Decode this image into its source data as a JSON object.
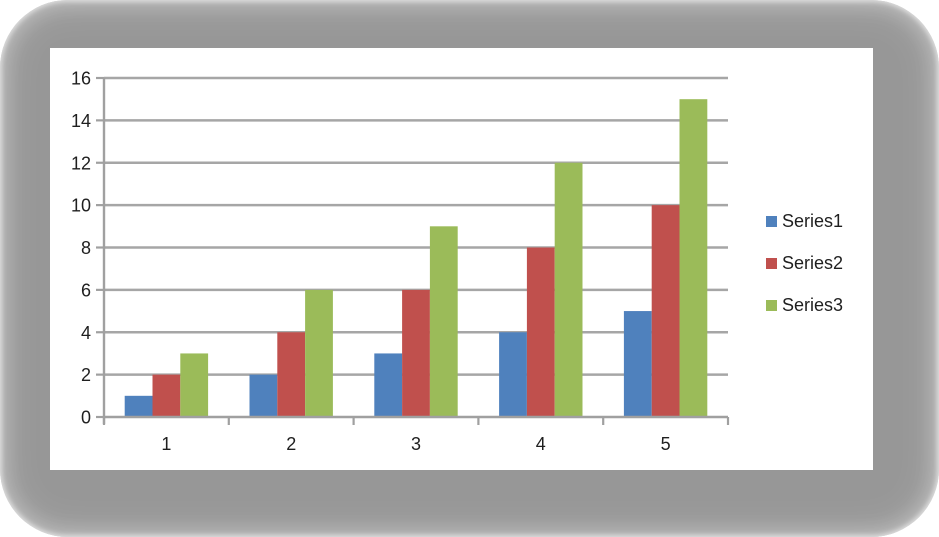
{
  "chart_data": {
    "type": "bar",
    "categories": [
      "1",
      "2",
      "3",
      "4",
      "5"
    ],
    "series": [
      {
        "name": "Series1",
        "color": "#4F81BD",
        "values": [
          1,
          2,
          3,
          4,
          5
        ]
      },
      {
        "name": "Series2",
        "color": "#C0504D",
        "values": [
          2,
          4,
          6,
          8,
          10
        ]
      },
      {
        "name": "Series3",
        "color": "#9BBB59",
        "values": [
          3,
          6,
          9,
          12,
          15
        ]
      }
    ],
    "ylim": [
      0,
      16
    ],
    "yticks": [
      0,
      2,
      4,
      6,
      8,
      10,
      12,
      14,
      16
    ],
    "grid": true,
    "legend_position": "right",
    "colors": {
      "gridline": "#A6A6A6",
      "axis": "#A0A0A0",
      "tick_label": "#1F1F1F",
      "frame": "#979797",
      "chart_background": "#FFFFFF"
    }
  }
}
